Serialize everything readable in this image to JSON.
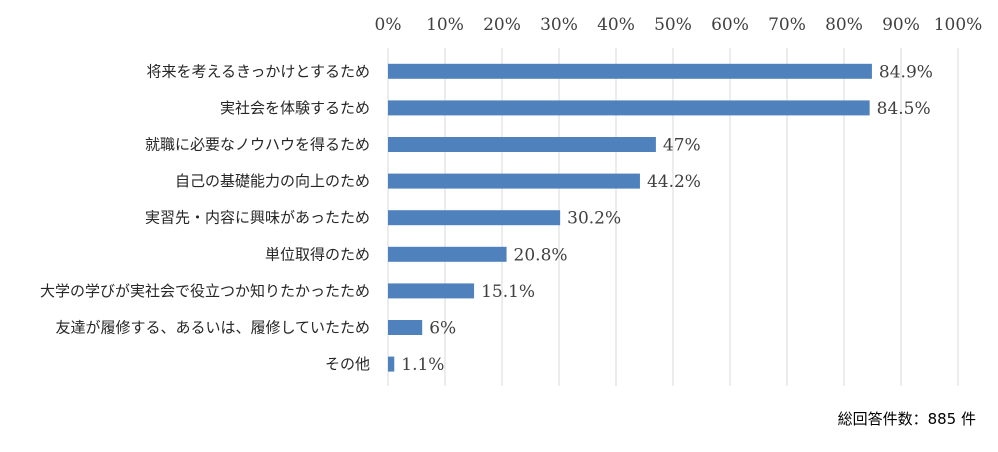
{
  "chart_data": {
    "type": "bar",
    "orientation": "horizontal",
    "categories": [
      "将来を考えるきっかけとするため",
      "実社会を体験するため",
      "就職に必要なノウハウを得るため",
      "自己の基礎能力の向上のため",
      "実習先・内容に興味があったため",
      "単位取得のため",
      "大学の学びが実社会で役立つか知りたかったため",
      "友達が履修する、あるいは、履修していたため",
      "その他"
    ],
    "values": [
      84.9,
      84.5,
      47,
      44.2,
      30.2,
      20.8,
      15.1,
      6,
      1.1
    ],
    "data_labels": [
      "84.9%",
      "84.5%",
      "47%",
      "44.2%",
      "30.2%",
      "20.8%",
      "15.1%",
      "6%",
      "1.1%"
    ],
    "x_ticks": [
      "0%",
      "10%",
      "20%",
      "30%",
      "40%",
      "50%",
      "60%",
      "70%",
      "80%",
      "90%",
      "100%"
    ],
    "xlim": [
      0,
      100
    ],
    "x_axis_position": "top",
    "grid": true,
    "bar_color": "#4f81bd",
    "grid_color": "#d9d9d9"
  },
  "footer": "総回答件数：885 件"
}
